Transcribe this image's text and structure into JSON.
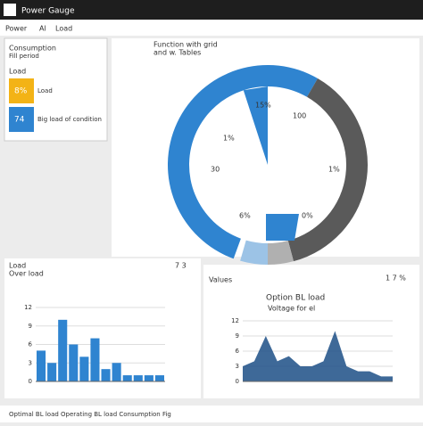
{
  "app": {
    "title": "Power Gauge",
    "menu": [
      "Power",
      "Al",
      "Load"
    ],
    "footer": "Optimal BL load Operating BL load Consumption Fig"
  },
  "summary": {
    "title": "Consumption",
    "subtitle": "Fill period"
  },
  "legend": {
    "title": "Load",
    "items": [
      {
        "value": "8%",
        "label": "Load",
        "color": "#f3b316"
      },
      {
        "value": "74",
        "label": "Big load of condition",
        "color": "#2f84d0"
      }
    ]
  },
  "gauge": {
    "title": "Function with grid",
    "subtitle": "and w. Tables",
    "labels": [
      "100",
      "1%",
      "30",
      "1%",
      "6%",
      "0%",
      "15%"
    ]
  },
  "bars": {
    "title": "Load",
    "subtitle": "Over load",
    "badge": "7 3",
    "values": [
      5,
      3,
      10,
      6,
      4,
      7,
      2,
      3,
      1,
      1,
      1,
      1
    ],
    "color": "#2f84d0",
    "ylim": [
      0,
      12
    ],
    "yticks": [
      0,
      3,
      6,
      9,
      12
    ]
  },
  "area": {
    "label": "Values",
    "title": "Option BL load",
    "subtitle": "Voltage for el",
    "badge": "1 7 %",
    "values": [
      3,
      4,
      9,
      4,
      5,
      3,
      3,
      4,
      10,
      3,
      2,
      2,
      1,
      1
    ],
    "color": "#1c4f86",
    "ylim": [
      0,
      12
    ],
    "yticks": [
      0,
      3,
      6,
      9,
      12
    ]
  }
}
